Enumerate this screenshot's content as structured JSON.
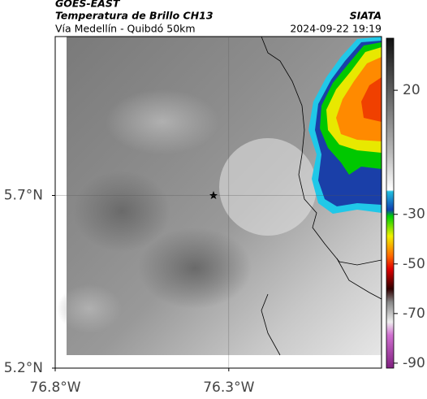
{
  "header": {
    "title": "GOES-EAST",
    "subtitle": "Temperatura de Brillo CH13",
    "source": "SIATA",
    "region": "Vía Medellín - Quibdó 50km",
    "timestamp": "2024-09-22 19:19"
  },
  "map": {
    "xlim": [
      -76.8,
      -75.86
    ],
    "ylim": [
      5.2,
      6.16
    ],
    "xticks": [
      {
        "value": -76.8,
        "label": "76.8°W"
      },
      {
        "value": -76.3,
        "label": "76.3°W"
      }
    ],
    "yticks": [
      {
        "value": 5.2,
        "label": "5.2°N"
      },
      {
        "value": 5.7,
        "label": "5.7°N"
      }
    ],
    "grid": true
  },
  "colorbar": {
    "clim": [
      -92,
      41
    ],
    "ticks": [
      20,
      -30,
      -50,
      -70,
      -90
    ]
  }
}
